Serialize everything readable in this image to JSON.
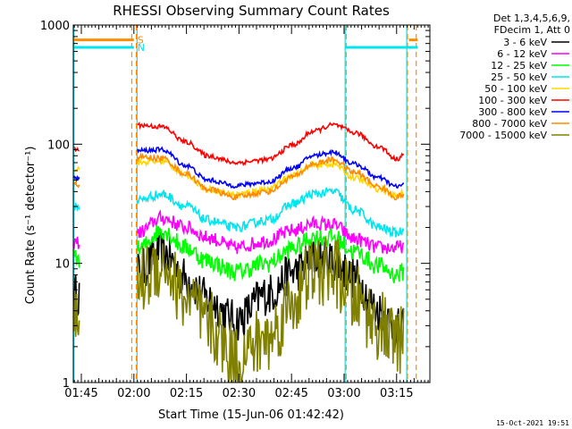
{
  "chart_data": {
    "type": "line",
    "title": "RHESSI Observing Summary Count Rates",
    "xlabel": "Start Time (15-Jun-06 01:42:42)",
    "ylabel": "Count Rate (s⁻¹ detector⁻¹)",
    "x_ticks": [
      "01:45",
      "02:00",
      "02:15",
      "02:30",
      "02:45",
      "03:00",
      "03:15"
    ],
    "x_tick_minutes": [
      105,
      120,
      135,
      150,
      165,
      180,
      195
    ],
    "xlim_minutes": [
      102.7,
      204.5
    ],
    "y_ticks": [
      1,
      10,
      100,
      1000
    ],
    "y_tick_labels": [
      "1",
      "10",
      "100",
      "1000"
    ],
    "ylim": [
      1,
      1000
    ],
    "yscale": "log",
    "legend_header": [
      "Det 1,3,4,5,6,9,",
      "FDecim 1, Att 0"
    ],
    "legend_placement": "right",
    "footer_date": "15-Oct-2021 19:51",
    "flags": [
      {
        "label": "S",
        "color": "#ff8c00",
        "level": 750,
        "segments": [
          [
            102.7,
            120.0
          ],
          [
            198.5,
            201.0
          ]
        ]
      },
      {
        "label": "N",
        "color": "#00e5ee",
        "level": 650,
        "segments": [
          [
            102.7,
            120.0
          ],
          [
            180.3,
            201.0
          ]
        ]
      }
    ],
    "vertical_markers": [
      {
        "color": "#00e5ee",
        "style": "solid",
        "x": 102.9
      },
      {
        "color": "#00e5ee",
        "style": "solid",
        "x": 120.9
      },
      {
        "color": "#ff8c00",
        "style": "dashed",
        "x": 119.4
      },
      {
        "color": "#ff8c00",
        "style": "dashed",
        "x": 120.7
      },
      {
        "color": "#00e5ee",
        "style": "solid",
        "x": 180.3
      },
      {
        "color": "#ff8c00",
        "style": "dashed",
        "x": 180.6
      },
      {
        "color": "#00e5ee",
        "style": "solid",
        "x": 197.9
      },
      {
        "color": "#ff8c00",
        "style": "dashed",
        "x": 198.1
      },
      {
        "color": "#ff8c00",
        "style": "dashed",
        "x": 200.6
      }
    ],
    "x_knots": [
      104.0,
      106.0,
      121.0,
      128.0,
      135.0,
      141.0,
      149.0,
      158.0,
      166.0,
      171.0,
      177.0,
      183.0,
      190.0,
      195.0,
      197.0
    ],
    "series": [
      {
        "name": "3 - 6 keV",
        "color": "#000000",
        "noise": 0.18,
        "segments": [
          {
            "x": [
              102.9,
              104.5
            ],
            "y": [
              5.5,
              5.5
            ]
          },
          {
            "x_knots": true,
            "y": [
              null,
              null,
              8.5,
              12.5,
              7.5,
              5.0,
              3.3,
              5.5,
              8.5,
              11.0,
              10.5,
              7.5,
              4.0,
              2.8,
              2.8
            ]
          }
        ]
      },
      {
        "name": "6 - 12 keV",
        "color": "#ff00ff",
        "noise": 0.06,
        "segments": [
          {
            "x": [
              102.9,
              104.5
            ],
            "y": [
              15.0,
              15.0
            ]
          },
          {
            "x_knots": true,
            "y": [
              null,
              null,
              18.0,
              24.0,
              20.0,
              16.5,
              13.5,
              15.5,
              19.0,
              21.5,
              21.0,
              16.0,
              13.5,
              13.5,
              14.0
            ]
          }
        ]
      },
      {
        "name": "12 - 25 keV",
        "color": "#00ff00",
        "noise": 0.08,
        "segments": [
          {
            "x": [
              102.9,
              104.5
            ],
            "y": [
              11.0,
              11.0
            ]
          },
          {
            "x_knots": true,
            "y": [
              null,
              null,
              13.0,
              19.0,
              13.5,
              10.5,
              8.5,
              10.0,
              13.5,
              16.5,
              16.5,
              12.5,
              9.5,
              8.0,
              8.5
            ]
          }
        ]
      },
      {
        "name": "25 - 50 keV",
        "color": "#00e5ee",
        "noise": 0.04,
        "segments": [
          {
            "x": [
              102.9,
              104.5
            ],
            "y": [
              30.0,
              30.0
            ]
          },
          {
            "x_knots": true,
            "y": [
              null,
              null,
              34.0,
              38.0,
              30.0,
              23.0,
              20.0,
              23.0,
              32.0,
              38.0,
              40.0,
              28.0,
              20.0,
              18.0,
              19.0
            ]
          }
        ]
      },
      {
        "name": "50 - 100 keV",
        "color": "#ffd700",
        "noise": 0.025,
        "segments": [
          {
            "x": [
              102.9,
              104.5
            ],
            "y": [
              62.0,
              62.0
            ]
          },
          {
            "x_knots": true,
            "y": [
              null,
              null,
              70.0,
              72.0,
              55.0,
              42.0,
              38.0,
              42.0,
              56.0,
              66.0,
              68.0,
              52.0,
              42.0,
              37.0,
              39.0
            ]
          }
        ]
      },
      {
        "name": "100 - 300 keV",
        "color": "#ff0000",
        "noise": 0.02,
        "segments": [
          {
            "x": [
              102.9,
              104.5
            ],
            "y": [
              90.0,
              90.0
            ]
          },
          {
            "x_knots": true,
            "y": [
              null,
              null,
              145.0,
              140.0,
              104.0,
              80.0,
              70.0,
              74.0,
              100.0,
              128.0,
              145.0,
              125.0,
              95.0,
              75.0,
              82.0
            ]
          }
        ]
      },
      {
        "name": "300 - 800 keV",
        "color": "#0000ff",
        "noise": 0.02,
        "segments": [
          {
            "x": [
              102.9,
              104.5
            ],
            "y": [
              52.0,
              52.0
            ]
          },
          {
            "x_knots": true,
            "y": [
              null,
              null,
              88.0,
              90.0,
              66.0,
              50.0,
              45.0,
              48.0,
              64.0,
              80.0,
              86.0,
              68.0,
              52.0,
              44.0,
              46.0
            ]
          }
        ]
      },
      {
        "name": "800 - 7000 keV",
        "color": "#ff8c00",
        "noise": 0.025,
        "segments": [
          {
            "x": [
              102.9,
              104.5
            ],
            "y": [
              46.0,
              46.0
            ]
          },
          {
            "x_knots": true,
            "y": [
              null,
              null,
              78.0,
              76.0,
              56.0,
              42.0,
              36.0,
              40.0,
              54.0,
              68.0,
              74.0,
              58.0,
              44.0,
              36.0,
              38.0
            ]
          }
        ]
      },
      {
        "name": "7000 - 15000 keV",
        "color": "#808000",
        "noise": 0.3,
        "segments": [
          {
            "x": [
              102.9,
              104.5
            ],
            "y": [
              3.0,
              3.0
            ]
          },
          {
            "x_knots": true,
            "y": [
              null,
              null,
              7.0,
              10.0,
              5.0,
              3.0,
              1.6,
              2.3,
              5.0,
              8.5,
              8.5,
              5.0,
              3.0,
              2.2,
              2.2
            ]
          }
        ]
      }
    ]
  }
}
